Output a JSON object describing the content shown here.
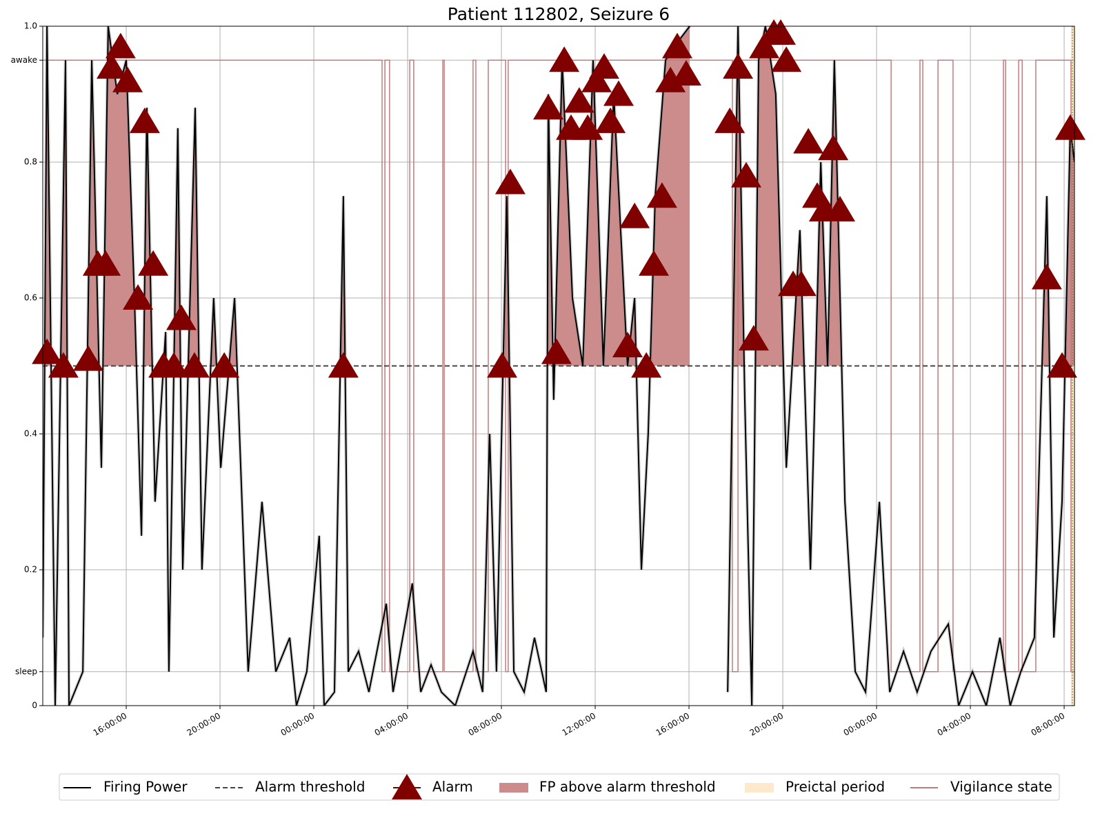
{
  "chart_data": {
    "type": "line",
    "title": "Patient 112802, Seizure 6",
    "x": [
      0.44,
      0.62,
      0.97,
      1.41,
      1.56,
      2.15,
      2.53,
      2.94,
      3.23,
      3.62,
      4.0,
      4.35,
      4.65,
      4.88,
      5.23,
      5.68,
      5.82,
      6.2,
      6.41,
      6.94,
      7.23,
      7.73,
      8.03,
      8.62,
      9.2,
      9.79,
      10.38,
      10.97,
      11.26,
      11.7,
      12.23,
      12.44,
      12.88,
      13.26,
      13.47,
      13.91,
      14.35,
      15.09,
      15.38,
      16.2,
      16.56,
      17.0,
      17.44,
      18.03,
      18.79,
      19.2,
      19.5,
      19.79,
      20.23,
      20.53,
      20.97,
      21.41,
      21.91,
      22.0,
      22.23,
      22.59,
      23.03,
      23.47,
      23.91,
      24.35,
      24.79,
      25.38,
      25.68,
      25.97,
      26.26,
      26.56,
      27.0,
      27.59,
      28.03,
      28.5,
      29.65,
      30.09,
      30.38,
      30.68,
      30.97,
      31.26,
      31.7,
      32.15,
      32.73,
      33.18,
      33.62,
      33.91,
      34.2,
      34.65,
      35.09,
      35.53,
      36.12,
      36.56,
      37.15,
      37.73,
      38.32,
      39.06,
      39.5,
      40.09,
      40.68,
      41.26,
      41.7,
      42.15,
      42.73,
      43.26,
      43.56,
      43.91,
      44.26,
      44.44
    ],
    "series": [
      {
        "name": "Firing Power",
        "color": "#000000",
        "values": [
          0.1,
          1.0,
          0.0,
          0.95,
          0.0,
          0.05,
          0.95,
          0.35,
          1.0,
          0.9,
          0.95,
          0.6,
          0.25,
          0.88,
          0.3,
          0.55,
          0.05,
          0.85,
          0.2,
          0.88,
          0.2,
          0.6,
          0.35,
          0.6,
          0.05,
          0.3,
          0.05,
          0.1,
          0.0,
          0.05,
          0.25,
          0.0,
          0.02,
          0.75,
          0.05,
          0.08,
          0.02,
          0.15,
          0.02,
          0.18,
          0.02,
          0.06,
          0.02,
          0.0,
          0.08,
          0.02,
          0.4,
          0.05,
          0.75,
          0.05,
          0.02,
          0.1,
          0.02,
          0.9,
          0.45,
          0.95,
          0.6,
          0.5,
          0.95,
          0.5,
          0.9,
          0.5,
          0.6,
          0.2,
          0.4,
          0.75,
          0.95,
          0.98,
          1.0,
          null,
          0.02,
          1.0,
          0.45,
          0.0,
          0.95,
          1.0,
          0.9,
          0.35,
          0.7,
          0.2,
          0.8,
          0.5,
          0.95,
          0.3,
          0.05,
          0.02,
          0.3,
          0.02,
          0.08,
          0.02,
          0.08,
          0.12,
          0.0,
          0.05,
          0.0,
          0.1,
          0.0,
          0.05,
          0.1,
          0.75,
          0.1,
          0.3,
          0.85,
          0.8
        ]
      }
    ],
    "threshold": {
      "name": "Alarm threshold",
      "value": 0.5,
      "color": "#444444"
    },
    "area": {
      "name": "FP above alarm threshold",
      "color": "#cd8c8c"
    },
    "alarms": {
      "name": "Alarm",
      "color": "#800000",
      "x": [
        0.62,
        1.32,
        2.38,
        2.79,
        3.12,
        3.38,
        3.76,
        4.06,
        4.5,
        4.79,
        5.15,
        5.59,
        6.03,
        6.35,
        6.91,
        8.18,
        13.26,
        20.03,
        20.38,
        22.0,
        22.35,
        22.68,
        22.97,
        23.32,
        23.68,
        24.06,
        24.38,
        24.65,
        25.0,
        25.38,
        25.68,
        26.18,
        26.5,
        26.85,
        27.21,
        27.5,
        27.88,
        29.74,
        30.09,
        30.44,
        30.76,
        31.21,
        31.62,
        31.91,
        32.15,
        32.44,
        32.79,
        33.09,
        33.47,
        33.76,
        34.15,
        34.44,
        43.26,
        43.91,
        44.26
      ],
      "values": [
        0.52,
        0.5,
        0.51,
        0.65,
        0.65,
        0.94,
        0.97,
        0.92,
        0.6,
        0.86,
        0.65,
        0.5,
        0.5,
        0.57,
        0.5,
        0.5,
        0.5,
        0.5,
        0.77,
        0.88,
        0.52,
        0.95,
        0.85,
        0.89,
        0.85,
        0.92,
        0.94,
        0.86,
        0.9,
        0.53,
        0.72,
        0.5,
        0.65,
        0.75,
        0.92,
        0.97,
        0.93,
        0.86,
        0.94,
        0.78,
        0.54,
        0.97,
        0.99,
        0.99,
        0.95,
        0.62,
        0.62,
        0.83,
        0.75,
        0.73,
        0.82,
        0.73,
        0.63,
        0.5,
        0.85
      ]
    },
    "preictal": {
      "name": "Preictal period",
      "color": "#fde9cc",
      "x": [
        44.29,
        44.44
      ]
    },
    "vigilance": {
      "name": "Vigilance state",
      "color": "#c47a7a",
      "step": "post",
      "x": [
        0.44,
        14.91,
        15.03,
        15.23,
        16.09,
        16.26,
        17.5,
        17.56,
        18.79,
        18.91,
        19.44,
        20.18,
        20.29,
        29.85,
        30.09,
        36.62,
        37.85,
        37.97,
        38.62,
        39.26,
        41.41,
        41.5,
        42.06,
        42.21,
        42.79,
        44.29,
        44.44
      ],
      "values": [
        0.95,
        0.05,
        0.95,
        0.05,
        0.95,
        0.05,
        0.95,
        0.05,
        0.95,
        0.05,
        0.95,
        0.05,
        0.95,
        0.05,
        0.95,
        0.05,
        0.95,
        0.05,
        0.95,
        0.05,
        0.95,
        0.05,
        0.95,
        0.05,
        0.95,
        0.05,
        0.05
      ]
    },
    "xlim": [
      0.44,
      44.44
    ],
    "xticks": [
      {
        "value": 4,
        "label": "16:00:00"
      },
      {
        "value": 8,
        "label": "20:00:00"
      },
      {
        "value": 12,
        "label": "00:00:00"
      },
      {
        "value": 16,
        "label": "04:00:00"
      },
      {
        "value": 20,
        "label": "08:00:00"
      },
      {
        "value": 24,
        "label": "12:00:00"
      },
      {
        "value": 28,
        "label": "16:00:00"
      },
      {
        "value": 32,
        "label": "20:00:00"
      },
      {
        "value": 36,
        "label": "00:00:00"
      },
      {
        "value": 40,
        "label": "04:00:00"
      },
      {
        "value": 44,
        "label": "08:00:00"
      }
    ],
    "ylim": [
      0,
      1
    ],
    "yticks": [
      0,
      {
        "value": 0.05,
        "label": "sleep"
      },
      0.2,
      0.4,
      0.6,
      0.8,
      {
        "value": 0.95,
        "label": "awake"
      },
      {
        "value": 1,
        "label": "1.0"
      }
    ],
    "grid": true,
    "legend": "lower center"
  }
}
